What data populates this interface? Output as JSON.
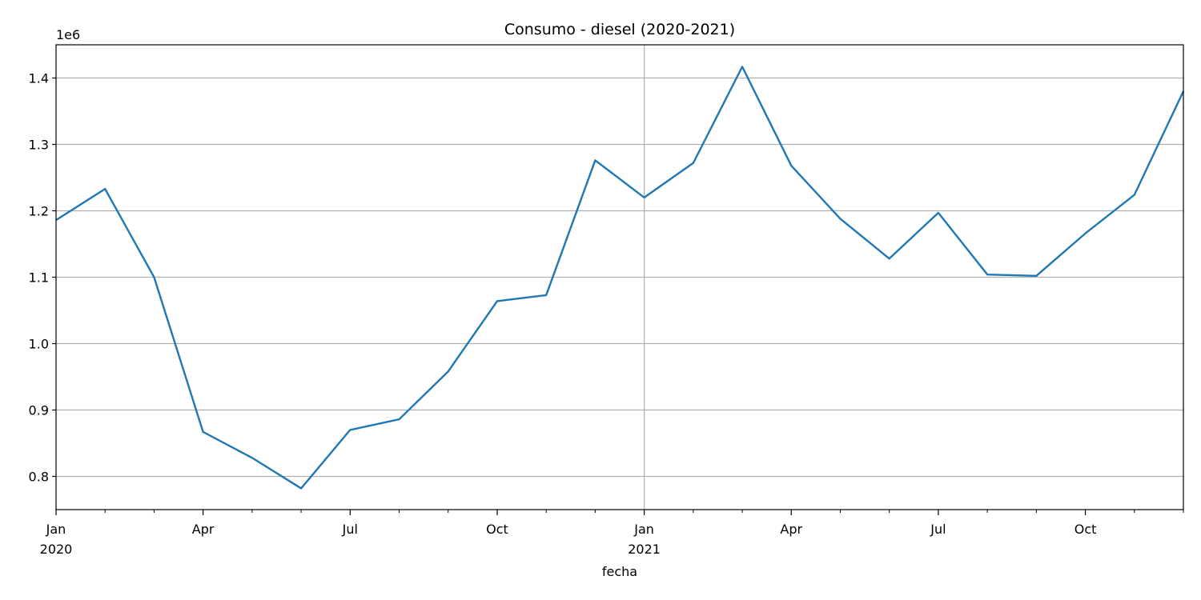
{
  "chart_data": {
    "type": "line",
    "title": "Consumo - diesel (2020-2021)",
    "xlabel": "fecha",
    "ylabel": "",
    "y_offset_label": "1e6",
    "ylim": [
      0.75,
      1.45
    ],
    "xlim": [
      "2020-01",
      "2021-12"
    ],
    "grid": true,
    "legend": "none",
    "y_ticks": [
      0.8,
      0.9,
      1.0,
      1.1,
      1.2,
      1.3,
      1.4
    ],
    "y_tick_labels": [
      "0.8",
      "0.9",
      "1.0",
      "1.1",
      "1.2",
      "1.3",
      "1.4"
    ],
    "x_major_ticks": [
      {
        "date": "2020-01",
        "label": "Jan",
        "sublabel": "2020"
      },
      {
        "date": "2020-04",
        "label": "Apr",
        "sublabel": ""
      },
      {
        "date": "2020-07",
        "label": "Jul",
        "sublabel": ""
      },
      {
        "date": "2020-10",
        "label": "Oct",
        "sublabel": ""
      },
      {
        "date": "2021-01",
        "label": "Jan",
        "sublabel": "2021"
      },
      {
        "date": "2021-04",
        "label": "Apr",
        "sublabel": ""
      },
      {
        "date": "2021-07",
        "label": "Jul",
        "sublabel": ""
      },
      {
        "date": "2021-10",
        "label": "Oct",
        "sublabel": ""
      }
    ],
    "x_gridlines": [
      "2021-01"
    ],
    "series": [
      {
        "name": "",
        "color": "#1f77b4",
        "x": [
          "2020-01",
          "2020-02",
          "2020-03",
          "2020-04",
          "2020-05",
          "2020-06",
          "2020-07",
          "2020-08",
          "2020-09",
          "2020-10",
          "2020-11",
          "2020-12",
          "2021-01",
          "2021-02",
          "2021-03",
          "2021-04",
          "2021-05",
          "2021-06",
          "2021-07",
          "2021-08",
          "2021-09",
          "2021-10",
          "2021-11",
          "2021-12"
        ],
        "values": [
          1.186,
          1.233,
          1.1,
          0.867,
          0.828,
          0.782,
          0.87,
          0.886,
          0.958,
          1.064,
          1.073,
          1.276,
          1.22,
          1.272,
          1.417,
          1.268,
          1.188,
          1.128,
          1.197,
          1.104,
          1.102,
          1.166,
          1.224,
          1.38
        ]
      }
    ]
  }
}
